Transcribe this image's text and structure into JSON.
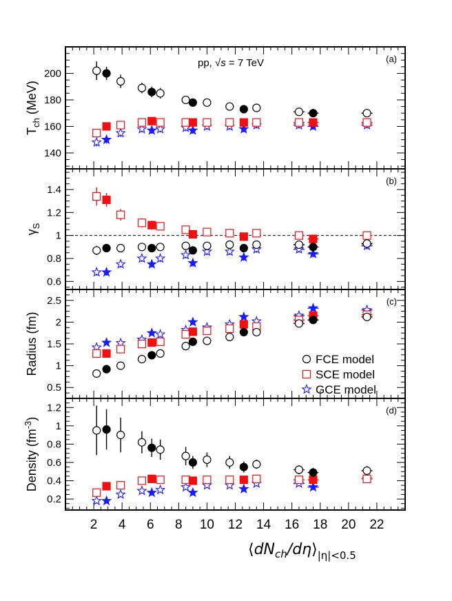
{
  "chart_data": {
    "type": "scatter",
    "title": "pp, √s = 7 TeV",
    "title_parts": {
      "prefix": "pp, ",
      "sqrt": "√",
      "var": "s",
      "suffix": " = 7 TeV"
    },
    "x_axis": {
      "range": [
        0,
        24
      ],
      "ticks": [
        2,
        4,
        6,
        8,
        10,
        12,
        14,
        16,
        18,
        20,
        22
      ],
      "label_parts": {
        "open": "⟨",
        "body": "dN",
        "sub1": "ch",
        "mid": "/dη",
        "close": "⟩",
        "sub2": "|η|<0.5"
      }
    },
    "legend": [
      {
        "model": "FCE",
        "label": "FCE model",
        "color": "#000000",
        "marker": "circle"
      },
      {
        "model": "SCE",
        "label": "SCE model",
        "color": "#ee1111",
        "marker": "square"
      },
      {
        "model": "GCE",
        "label": "GCE model",
        "color": "#1a1aff",
        "marker": "star"
      }
    ],
    "x_open": [
      2.2,
      3.9,
      5.4,
      6.7,
      8.5,
      10.0,
      11.6,
      13.5,
      16.5,
      21.3
    ],
    "x_filled": [
      2.9,
      6.1,
      9.0,
      12.6,
      17.5
    ],
    "panels": [
      {
        "id": "a",
        "panel_label": "(a)",
        "ylabel": "T",
        "ylabel_sub": "ch",
        "ylabel_suffix": " (MeV)",
        "ylim": [
          128,
          220
        ],
        "yticks": [
          "140",
          "160",
          "180",
          "200"
        ],
        "ytick_values": [
          140,
          160,
          180,
          200
        ],
        "series": {
          "FCE": {
            "open": [
              202,
              194,
              189,
              185,
              180,
              178,
              175,
              174,
              171,
              170
            ],
            "filled": [
              200,
              186,
              178,
              173,
              170
            ],
            "err_open": [
              7,
              5,
              4,
              4,
              3,
              3,
              3,
              2.5,
              3,
              3
            ],
            "err_filled": [
              5,
              4,
              3,
              3,
              3
            ]
          },
          "SCE": {
            "open": [
              155,
              161,
              163,
              163,
              163,
              163,
              163,
              163,
              163,
              163
            ],
            "filled": [
              160,
              164,
              163,
              163,
              163
            ],
            "err_open": [
              3,
              3,
              2.5,
              2.5,
              2.5,
              2.5,
              2.5,
              2.5,
              2.5,
              2.5
            ],
            "err_filled": [
              3,
              2.5,
              2.5,
              2.5,
              2.5
            ]
          },
          "GCE": {
            "open": [
              148,
              155,
              158,
              158,
              159,
              160,
              160,
              161,
              161,
              161
            ],
            "filled": [
              150,
              157,
              157,
              158,
              160
            ],
            "err_open": [
              3,
              3,
              2.5,
              2.5,
              2.5,
              2.5,
              2.5,
              2.5,
              2.5,
              2.5
            ],
            "err_filled": [
              3,
              2.5,
              2.5,
              2.5,
              2.5
            ]
          }
        }
      },
      {
        "id": "b",
        "panel_label": "(b)",
        "ylabel": "γ",
        "ylabel_sub": "S",
        "ylabel_suffix": "",
        "ylim": [
          0.53,
          1.58
        ],
        "yticks": [
          "0.6",
          "0.8",
          "1",
          "1.2",
          "1.4"
        ],
        "ytick_values": [
          0.6,
          0.8,
          1.0,
          1.2,
          1.4
        ],
        "reference_line": 1.0,
        "series": {
          "FCE": {
            "open": [
              0.87,
              0.89,
              0.9,
              0.9,
              0.91,
              0.91,
              0.92,
              0.92,
              0.92,
              0.93
            ],
            "filled": [
              0.89,
              0.89,
              0.87,
              0.89,
              0.9
            ],
            "err_open": [
              0.04,
              0.03,
              0.02,
              0.02,
              0.02,
              0.02,
              0.02,
              0.02,
              0.03,
              0.03
            ],
            "err_filled": [
              0.03,
              0.02,
              0.02,
              0.02,
              0.03
            ]
          },
          "SCE": {
            "open": [
              1.34,
              1.18,
              1.11,
              1.08,
              1.05,
              1.03,
              1.02,
              1.02,
              1.0,
              1.0
            ],
            "filled": [
              1.31,
              1.09,
              1.01,
              0.99,
              0.97
            ],
            "err_open": [
              0.08,
              0.05,
              0.04,
              0.03,
              0.03,
              0.03,
              0.03,
              0.03,
              0.03,
              0.03
            ],
            "err_filled": [
              0.06,
              0.04,
              0.03,
              0.03,
              0.03
            ]
          },
          "GCE": {
            "open": [
              0.68,
              0.75,
              0.8,
              0.8,
              0.83,
              0.86,
              0.86,
              0.88,
              0.88,
              0.91
            ],
            "filled": [
              0.68,
              0.75,
              0.76,
              0.81,
              0.84
            ],
            "err_open": [
              0.03,
              0.03,
              0.03,
              0.03,
              0.03,
              0.03,
              0.03,
              0.03,
              0.03,
              0.03
            ],
            "err_filled": [
              0.03,
              0.03,
              0.03,
              0.03,
              0.03
            ]
          }
        }
      },
      {
        "id": "c",
        "panel_label": "(c)",
        "ylabel": "Radius (fm)",
        "ylabel_sub": "",
        "ylabel_suffix": "",
        "ylim": [
          0.25,
          2.75
        ],
        "yticks": [
          "0.5",
          "1",
          "1.5",
          "2",
          "2.5"
        ],
        "ytick_values": [
          0.5,
          1.0,
          1.5,
          2.0,
          2.5
        ],
        "series": {
          "FCE": {
            "open": [
              0.82,
              1.0,
              1.15,
              1.28,
              1.45,
              1.57,
              1.66,
              1.77,
              1.97,
              2.12
            ],
            "filled": [
              0.92,
              1.24,
              1.55,
              1.77,
              2.05
            ],
            "err_open": [
              0.02,
              0.02,
              0.02,
              0.02,
              0.03,
              0.03,
              0.03,
              0.03,
              0.04,
              0.04
            ],
            "err_filled": [
              0.02,
              0.02,
              0.03,
              0.03,
              0.04
            ]
          },
          "SCE": {
            "open": [
              1.28,
              1.38,
              1.5,
              1.55,
              1.72,
              1.8,
              1.85,
              1.9,
              2.05,
              2.17
            ],
            "filled": [
              1.28,
              1.53,
              1.78,
              1.95,
              2.15
            ],
            "err_open": [
              0.04,
              0.04,
              0.04,
              0.04,
              0.05,
              0.05,
              0.05,
              0.05,
              0.06,
              0.06
            ],
            "err_filled": [
              0.04,
              0.04,
              0.05,
              0.05,
              0.06
            ]
          },
          "GCE": {
            "open": [
              1.42,
              1.52,
              1.6,
              1.72,
              1.82,
              1.88,
              1.95,
              2.02,
              2.15,
              2.28
            ],
            "filled": [
              1.53,
              1.75,
              2.0,
              2.12,
              2.32
            ],
            "err_open": [
              0.05,
              0.05,
              0.05,
              0.05,
              0.06,
              0.06,
              0.06,
              0.06,
              0.07,
              0.07
            ],
            "err_filled": [
              0.05,
              0.05,
              0.06,
              0.06,
              0.07
            ]
          }
        }
      },
      {
        "id": "d",
        "panel_label": "(d)",
        "ylabel": "Density (fm",
        "ylabel_sub": "",
        "ylabel_sup": "-3",
        "ylabel_suffix": ")",
        "ylim": [
          0.08,
          1.3
        ],
        "yticks": [
          "0.2",
          "0.4",
          "0.6",
          "0.8",
          "1",
          "1.2"
        ],
        "ytick_values": [
          0.2,
          0.4,
          0.6,
          0.8,
          1.0,
          1.2
        ],
        "series": {
          "FCE": {
            "open": [
              0.95,
              0.9,
              0.82,
              0.74,
              0.67,
              0.63,
              0.6,
              0.58,
              0.52,
              0.51
            ],
            "filled": [
              0.96,
              0.76,
              0.6,
              0.55,
              0.49
            ],
            "err_open": [
              0.27,
              0.19,
              0.12,
              0.11,
              0.1,
              0.08,
              0.07,
              0.05,
              0.05,
              0.05
            ],
            "err_filled": [
              0.22,
              0.1,
              0.07,
              0.06,
              0.05
            ]
          },
          "SCE": {
            "open": [
              0.27,
              0.35,
              0.4,
              0.41,
              0.41,
              0.41,
              0.41,
              0.42,
              0.41,
              0.42
            ],
            "filled": [
              0.34,
              0.42,
              0.4,
              0.41,
              0.41
            ],
            "err_open": [
              0.04,
              0.04,
              0.04,
              0.04,
              0.04,
              0.04,
              0.04,
              0.04,
              0.04,
              0.04
            ],
            "err_filled": [
              0.04,
              0.04,
              0.04,
              0.04,
              0.04
            ]
          },
          "GCE": {
            "open": [
              0.18,
              0.25,
              0.29,
              0.3,
              0.33,
              0.35,
              0.35,
              0.37,
              0.37,
              0.42
            ],
            "filled": [
              0.18,
              0.27,
              0.27,
              0.31,
              0.33
            ],
            "err_open": [
              0.03,
              0.03,
              0.03,
              0.03,
              0.03,
              0.03,
              0.03,
              0.03,
              0.03,
              0.03
            ],
            "err_filled": [
              0.03,
              0.03,
              0.03,
              0.03,
              0.03
            ]
          }
        }
      }
    ]
  }
}
